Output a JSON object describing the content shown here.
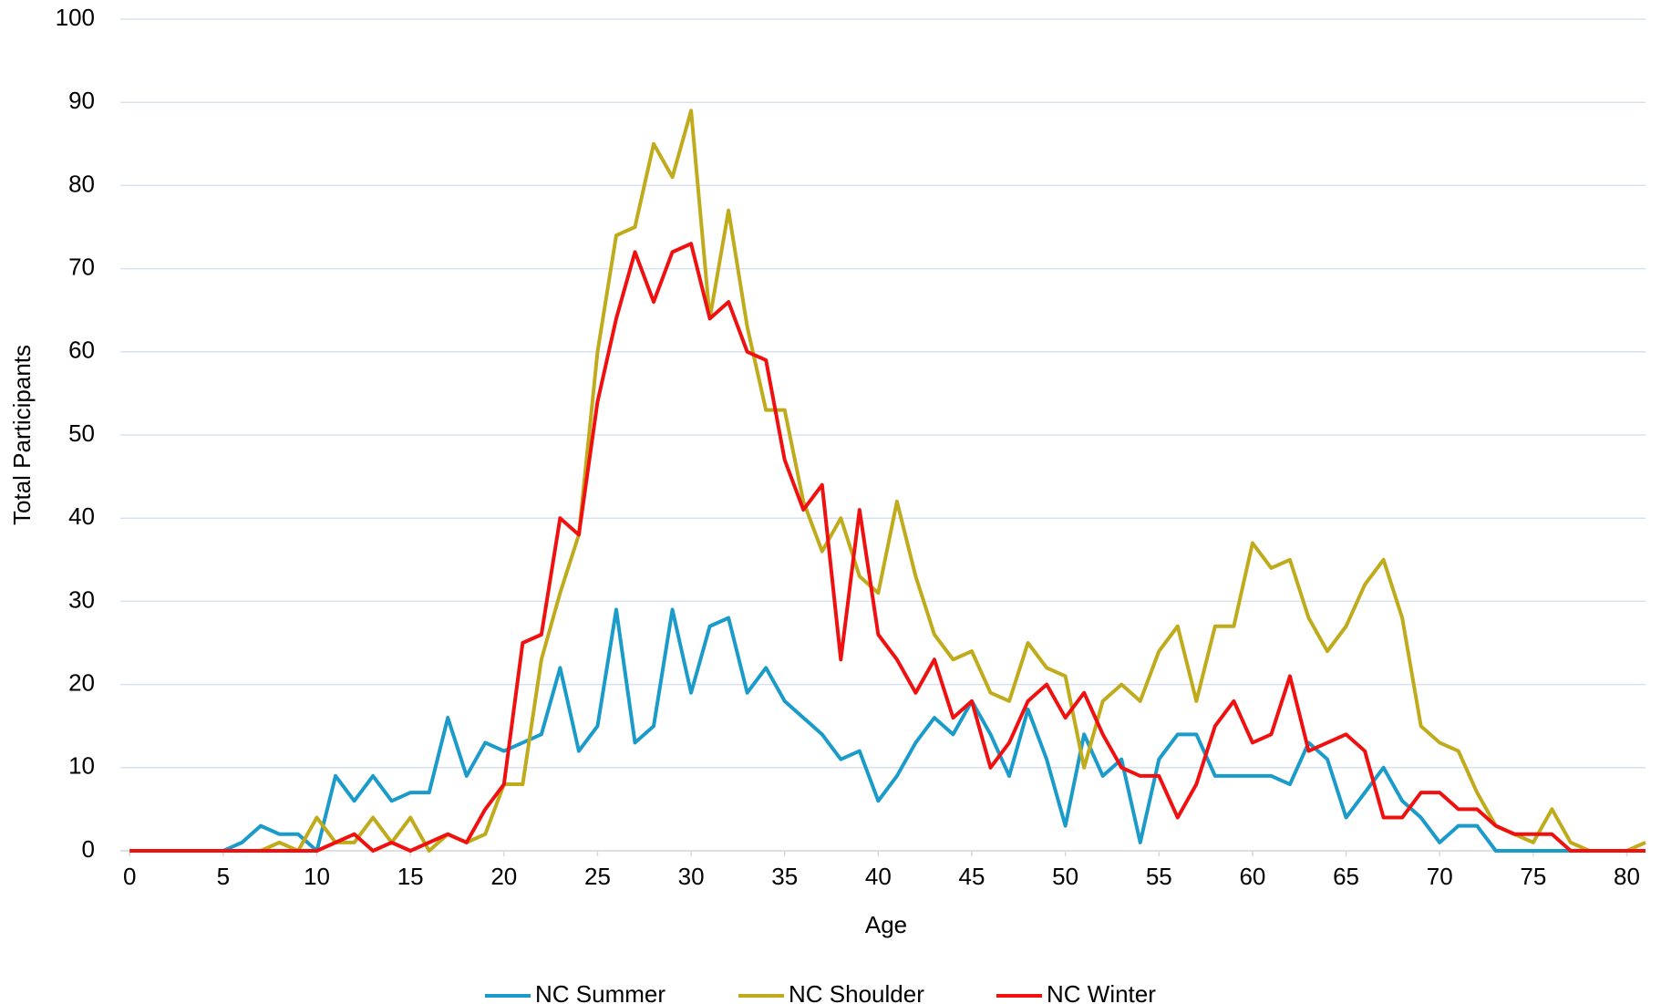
{
  "chart_data": {
    "type": "line",
    "x_label": "Age",
    "y_label": "Total Participants",
    "x": [
      0,
      1,
      2,
      3,
      4,
      5,
      6,
      7,
      8,
      9,
      10,
      11,
      12,
      13,
      14,
      15,
      16,
      17,
      18,
      19,
      20,
      21,
      22,
      23,
      24,
      25,
      26,
      27,
      28,
      29,
      30,
      31,
      32,
      33,
      34,
      35,
      36,
      37,
      38,
      39,
      40,
      41,
      42,
      43,
      44,
      45,
      46,
      47,
      48,
      49,
      50,
      51,
      52,
      53,
      54,
      55,
      56,
      57,
      58,
      59,
      60,
      61,
      62,
      63,
      64,
      65,
      66,
      67,
      68,
      69,
      70,
      71,
      72,
      73,
      74,
      75,
      76,
      77,
      78,
      79,
      80,
      81
    ],
    "series": [
      {
        "name": "NC Summer",
        "color": "#1a9bc9",
        "values": [
          0,
          0,
          0,
          0,
          0,
          0,
          1,
          3,
          2,
          2,
          0,
          9,
          6,
          9,
          6,
          7,
          7,
          16,
          9,
          13,
          12,
          13,
          14,
          22,
          12,
          15,
          29,
          13,
          15,
          29,
          19,
          27,
          28,
          19,
          22,
          18,
          16,
          14,
          11,
          12,
          6,
          9,
          13,
          16,
          14,
          18,
          14,
          9,
          17,
          11,
          3,
          14,
          9,
          11,
          1,
          11,
          14,
          14,
          9,
          9,
          9,
          9,
          8,
          13,
          11,
          4,
          7,
          10,
          6,
          4,
          1,
          3,
          3,
          0,
          0,
          0,
          0,
          0,
          0,
          0,
          0,
          0
        ]
      },
      {
        "name": "NC Shoulder",
        "color": "#bfab1c",
        "values": [
          0,
          0,
          0,
          0,
          0,
          0,
          0,
          0,
          1,
          0,
          4,
          1,
          1,
          4,
          1,
          4,
          0,
          2,
          1,
          2,
          8,
          8,
          23,
          31,
          38,
          60,
          74,
          75,
          85,
          81,
          89,
          64,
          77,
          63,
          53,
          53,
          42,
          36,
          40,
          33,
          31,
          42,
          33,
          26,
          23,
          24,
          19,
          18,
          25,
          22,
          21,
          10,
          18,
          20,
          18,
          24,
          27,
          18,
          27,
          27,
          37,
          34,
          35,
          28,
          24,
          27,
          32,
          35,
          28,
          15,
          13,
          12,
          7,
          3,
          2,
          1,
          5,
          1,
          0,
          0,
          0,
          1
        ]
      },
      {
        "name": "NC Winter",
        "color": "#f01010",
        "values": [
          0,
          0,
          0,
          0,
          0,
          0,
          0,
          0,
          0,
          0,
          0,
          1,
          2,
          0,
          1,
          0,
          1,
          2,
          1,
          5,
          8,
          25,
          26,
          40,
          38,
          54,
          64,
          72,
          66,
          72,
          73,
          64,
          66,
          60,
          59,
          47,
          41,
          44,
          23,
          41,
          26,
          23,
          19,
          23,
          16,
          18,
          10,
          13,
          18,
          20,
          16,
          19,
          14,
          10,
          9,
          9,
          4,
          8,
          15,
          18,
          13,
          14,
          21,
          12,
          13,
          14,
          12,
          4,
          4,
          7,
          7,
          5,
          5,
          3,
          2,
          2,
          2,
          0,
          0,
          0,
          0,
          0
        ]
      }
    ],
    "xlim": [
      -0.5,
      81
    ],
    "xticks": [
      0,
      5,
      10,
      15,
      20,
      25,
      30,
      35,
      40,
      45,
      50,
      55,
      60,
      65,
      70,
      75,
      80
    ],
    "ylim": [
      0,
      100
    ],
    "yticks": [
      0,
      10,
      20,
      30,
      40,
      50,
      60,
      70,
      80,
      90,
      100
    ],
    "grid": true,
    "legend": "bottom"
  }
}
